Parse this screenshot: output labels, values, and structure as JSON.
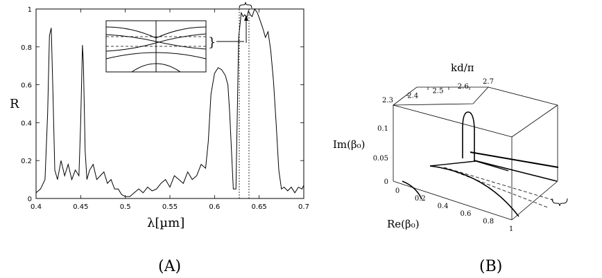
{
  "chart_data": [
    {
      "panel_label": "(A)",
      "type": "line",
      "xlabel": "λ[µm]",
      "ylabel": "R",
      "xlim": [
        0.4,
        0.7
      ],
      "ylim": [
        0,
        1
      ],
      "x_ticks": [
        "0.4",
        "0.45",
        "0.5",
        "0.55",
        "0.6",
        "0.65",
        "0.7"
      ],
      "y_ticks": [
        "0",
        "0.2",
        "0.4",
        "0.6",
        "0.8",
        "1"
      ],
      "grid": false,
      "series": [
        {
          "x": [
            0.4,
            0.405,
            0.41,
            0.413,
            0.415,
            0.417,
            0.419,
            0.421,
            0.424,
            0.428,
            0.432,
            0.436,
            0.44,
            0.444,
            0.448,
            0.45,
            0.452,
            0.453,
            0.455,
            0.457,
            0.46,
            0.464,
            0.468,
            0.472,
            0.476,
            0.48,
            0.484,
            0.488,
            0.492,
            0.496,
            0.5,
            0.505,
            0.51,
            0.515,
            0.52,
            0.525,
            0.53,
            0.535,
            0.54,
            0.545,
            0.55,
            0.555,
            0.56,
            0.565,
            0.57,
            0.575,
            0.58,
            0.585,
            0.59,
            0.593,
            0.596,
            0.6,
            0.604,
            0.608,
            0.612,
            0.615,
            0.617,
            0.619,
            0.621,
            0.624,
            0.627,
            0.63,
            0.632,
            0.634,
            0.636,
            0.638,
            0.64,
            0.642,
            0.645,
            0.648,
            0.651,
            0.654,
            0.657,
            0.66,
            0.663,
            0.666,
            0.669,
            0.672,
            0.675,
            0.678,
            0.682,
            0.686,
            0.69,
            0.694,
            0.698,
            0.7
          ],
          "y": [
            0.03,
            0.05,
            0.1,
            0.45,
            0.86,
            0.9,
            0.55,
            0.15,
            0.1,
            0.2,
            0.12,
            0.18,
            0.1,
            0.15,
            0.12,
            0.4,
            0.81,
            0.72,
            0.25,
            0.1,
            0.15,
            0.18,
            0.1,
            0.12,
            0.14,
            0.08,
            0.1,
            0.05,
            0.05,
            0.02,
            0.01,
            0.01,
            0.03,
            0.05,
            0.03,
            0.06,
            0.04,
            0.05,
            0.08,
            0.1,
            0.06,
            0.12,
            0.1,
            0.08,
            0.14,
            0.1,
            0.12,
            0.18,
            0.16,
            0.3,
            0.55,
            0.66,
            0.69,
            0.68,
            0.65,
            0.6,
            0.45,
            0.25,
            0.05,
            0.05,
            0.85,
            0.98,
            0.96,
            0.97,
            0.95,
            0.99,
            0.97,
            0.96,
            1.0,
            0.98,
            0.94,
            0.9,
            0.85,
            0.88,
            0.78,
            0.62,
            0.4,
            0.15,
            0.05,
            0.06,
            0.04,
            0.06,
            0.03,
            0.06,
            0.05,
            0.07
          ]
        }
      ],
      "annotations": [
        "}"
      ]
    },
    {
      "panel_label": "(B)",
      "type": "line",
      "xlabel": "Re(β₀)",
      "ylabel": "Im(β₀)",
      "zlabel": "kd/π",
      "x_ticks": [
        "0",
        "0.2",
        "0.4",
        "0.6",
        "0.8",
        "1"
      ],
      "y_ticks": [
        "0",
        "0.05",
        "0.1"
      ],
      "z_ticks": [
        "2.3",
        "2.4",
        "2.5",
        "2.6",
        "2.7"
      ],
      "annotations": [
        "}"
      ]
    }
  ]
}
